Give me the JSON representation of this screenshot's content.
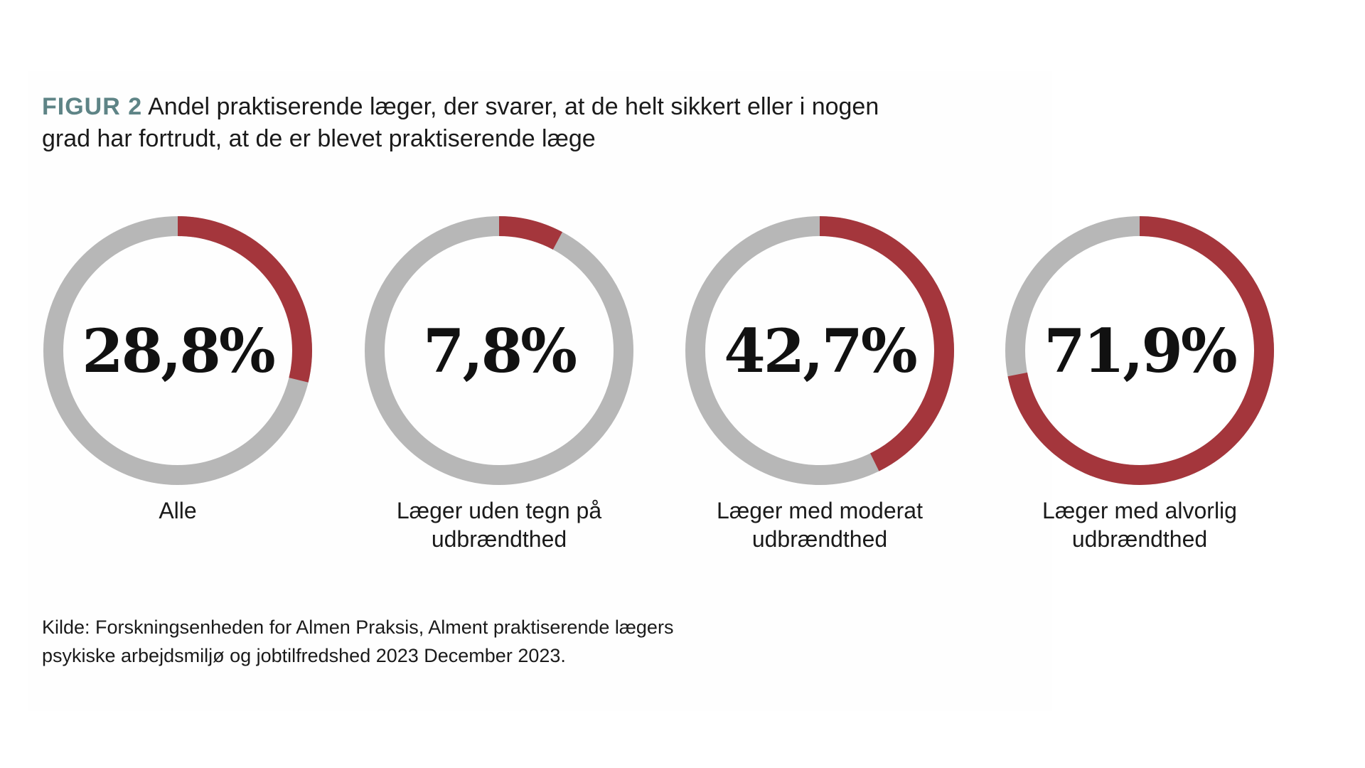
{
  "figure": {
    "label": "FIGUR 2",
    "title_line1": "Andel praktiserende læger, der svarer, at de helt sikkert eller i nogen",
    "title_line2": "grad har fortrudt, at de er blevet praktiserende læge"
  },
  "source": {
    "line1": "Kilde: Forskningsenheden for Almen Praksis, Alment praktiserende lægers",
    "line2": "psykiske arbejdsmiljø og jobtilfredshed 2023 December 2023."
  },
  "colors": {
    "highlight": "#a4363c",
    "track": "#b7b7b7",
    "figure_label": "#5e8486"
  },
  "chart_data": {
    "type": "pie",
    "style": "donut",
    "unit": "%",
    "items": [
      {
        "value": 28.8,
        "value_label": "28,8%",
        "label_lines": [
          "Alle"
        ]
      },
      {
        "value": 7.8,
        "value_label": "7,8%",
        "label_lines": [
          "Læger uden tegn på",
          "udbrændthed"
        ]
      },
      {
        "value": 42.7,
        "value_label": "42,7%",
        "label_lines": [
          "Læger med moderat",
          "udbrændthed"
        ]
      },
      {
        "value": 71.9,
        "value_label": "71,9%",
        "label_lines": [
          "Læger med alvorlig",
          "udbrændthed"
        ]
      }
    ]
  }
}
